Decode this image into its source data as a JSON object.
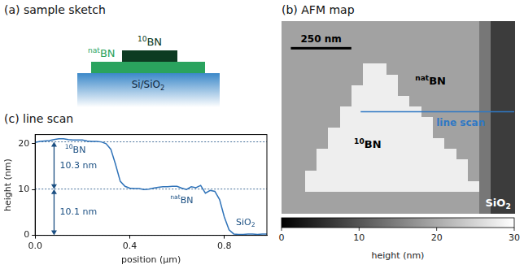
{
  "sketch": {
    "title": "(a) sample sketch",
    "layers": [
      {
        "label": {
          "sup": "10",
          "text": "BN"
        },
        "color": "#0d3b22"
      },
      {
        "label": {
          "sup": "nat",
          "text": "BN"
        },
        "color": "#2aa35e"
      },
      {
        "label": {
          "text": "Si/SiO",
          "sub": "2"
        },
        "color": "#3b88c9"
      }
    ]
  },
  "map": {
    "title": "(b) AFM map",
    "scale_bar": "250 nm",
    "line_scan": {
      "label": "line scan",
      "color": "#2f78c4"
    },
    "labels": [
      {
        "text": {
          "sup": "nat",
          "text": "BN"
        }
      },
      {
        "text": {
          "sup": "10",
          "text": "BN"
        }
      },
      {
        "text": {
          "text": "SiO",
          "sub": "2"
        }
      }
    ],
    "cells": [
      [
        19,
        19,
        19,
        19,
        19,
        19,
        19,
        19,
        19,
        19,
        19,
        19,
        19,
        19,
        19,
        19,
        19,
        14,
        7,
        7
      ],
      [
        19,
        19,
        19,
        19,
        19,
        19,
        19,
        19,
        19,
        19,
        19,
        19,
        19,
        19,
        19,
        19,
        19,
        14,
        7,
        7
      ],
      [
        19,
        19,
        19,
        19,
        19,
        19,
        19,
        19,
        19,
        19,
        19,
        19,
        19,
        19,
        19,
        19,
        19,
        14,
        7,
        7
      ],
      [
        19,
        19,
        19,
        19,
        19,
        19,
        19,
        19,
        19,
        19,
        19,
        19,
        19,
        19,
        19,
        19,
        19,
        14,
        7,
        7
      ],
      [
        19,
        19,
        19,
        19,
        19,
        19,
        19,
        28,
        28,
        19,
        19,
        19,
        19,
        19,
        19,
        19,
        19,
        14,
        7,
        7
      ],
      [
        19,
        19,
        19,
        19,
        19,
        19,
        19,
        28,
        28,
        28,
        19,
        19,
        19,
        19,
        19,
        19,
        19,
        14,
        7,
        7
      ],
      [
        19,
        19,
        19,
        19,
        19,
        19,
        28,
        28,
        28,
        28,
        19,
        19,
        19,
        19,
        19,
        19,
        19,
        14,
        7,
        7
      ],
      [
        19,
        19,
        19,
        19,
        19,
        19,
        28,
        28,
        28,
        28,
        28,
        19,
        19,
        19,
        19,
        19,
        19,
        14,
        7,
        7
      ],
      [
        19,
        19,
        19,
        19,
        19,
        28,
        28,
        28,
        28,
        28,
        28,
        28,
        19,
        19,
        19,
        19,
        19,
        14,
        7,
        7
      ],
      [
        19,
        19,
        19,
        19,
        19,
        28,
        28,
        28,
        28,
        28,
        28,
        28,
        28,
        19,
        19,
        19,
        19,
        14,
        7,
        7
      ],
      [
        19,
        19,
        19,
        19,
        28,
        28,
        28,
        28,
        28,
        28,
        28,
        28,
        28,
        19,
        19,
        19,
        19,
        14,
        7,
        7
      ],
      [
        19,
        19,
        19,
        19,
        28,
        28,
        28,
        28,
        28,
        28,
        28,
        28,
        28,
        28,
        19,
        19,
        19,
        14,
        7,
        7
      ],
      [
        19,
        19,
        19,
        28,
        28,
        28,
        28,
        28,
        28,
        28,
        28,
        28,
        28,
        28,
        28,
        19,
        19,
        14,
        7,
        7
      ],
      [
        19,
        19,
        19,
        28,
        28,
        28,
        28,
        28,
        28,
        28,
        28,
        28,
        28,
        28,
        28,
        28,
        19,
        14,
        7,
        7
      ],
      [
        19,
        19,
        28,
        28,
        28,
        28,
        28,
        28,
        28,
        28,
        28,
        28,
        28,
        28,
        28,
        28,
        19,
        14,
        7,
        7
      ],
      [
        19,
        19,
        28,
        28,
        28,
        28,
        28,
        28,
        28,
        28,
        28,
        28,
        28,
        28,
        28,
        28,
        28,
        14,
        7,
        7
      ],
      [
        19,
        19,
        19,
        19,
        19,
        19,
        19,
        19,
        19,
        19,
        19,
        19,
        19,
        19,
        19,
        19,
        19,
        14,
        7,
        7
      ],
      [
        19,
        19,
        19,
        19,
        19,
        19,
        19,
        19,
        19,
        19,
        19,
        19,
        19,
        19,
        19,
        19,
        19,
        14,
        7,
        7
      ]
    ],
    "colorbar": {
      "range": [
        0,
        30
      ],
      "ticks": [
        0,
        10,
        20,
        30
      ],
      "label": "height (nm)"
    }
  },
  "chart_data": {
    "type": "line",
    "title": "(c) line scan",
    "x_label": "position (µm)",
    "y_label": "height (nm)",
    "x": [
      0.0,
      0.02,
      0.04,
      0.06,
      0.08,
      0.1,
      0.12,
      0.14,
      0.16,
      0.18,
      0.2,
      0.22,
      0.24,
      0.26,
      0.28,
      0.3,
      0.32,
      0.34,
      0.36,
      0.38,
      0.4,
      0.42,
      0.44,
      0.46,
      0.48,
      0.5,
      0.52,
      0.54,
      0.56,
      0.58,
      0.6,
      0.62,
      0.64,
      0.66,
      0.68,
      0.7,
      0.72,
      0.74,
      0.76,
      0.78,
      0.8,
      0.82,
      0.84,
      0.86,
      0.88,
      0.9,
      0.92,
      0.94,
      0.96,
      0.98
    ],
    "values": [
      20.3,
      20.5,
      20.6,
      20.7,
      20.9,
      21.1,
      21.1,
      20.9,
      20.8,
      20.8,
      20.8,
      20.6,
      20.5,
      20.5,
      20.4,
      20.0,
      18.8,
      15.5,
      11.8,
      10.7,
      10.3,
      10.2,
      10.2,
      10.0,
      10.1,
      10.3,
      10.5,
      10.6,
      10.6,
      10.7,
      10.7,
      10.3,
      10.0,
      10.6,
      10.4,
      10.9,
      9.2,
      9.8,
      9.6,
      7.8,
      4.0,
      1.2,
      0.3,
      0.2,
      0.2,
      0.3,
      0.3,
      0.2,
      0.3,
      0.3
    ],
    "color": "#2e72b8",
    "xlim": [
      0,
      0.98
    ],
    "xticks": [
      {
        "value": 0,
        "label": "0.0"
      },
      {
        "value": 0.4,
        "label": "0.4"
      },
      {
        "value": 0.8,
        "label": "0.8"
      }
    ],
    "ylim": [
      0,
      22
    ],
    "yticks": [
      0,
      10,
      20
    ],
    "grid": false,
    "reference_lines": [
      0,
      10.1,
      20.4
    ],
    "arrows": [
      {
        "x": 0.08,
        "from": 10.1,
        "to": 20.4,
        "label": "10.3 nm"
      },
      {
        "x": 0.08,
        "from": 0,
        "to": 10.1,
        "label": "10.1 nm"
      }
    ],
    "annotations": [
      {
        "text": {
          "sup": "10",
          "text": "BN"
        },
        "x": 0.17,
        "y": 18.6
      },
      {
        "text": {
          "sup": "nat",
          "text": "BN"
        },
        "x": 0.62,
        "y": 7.6
      },
      {
        "text": {
          "text": "SiO",
          "sub": "2"
        },
        "x": 0.89,
        "y": 2.8
      }
    ]
  }
}
